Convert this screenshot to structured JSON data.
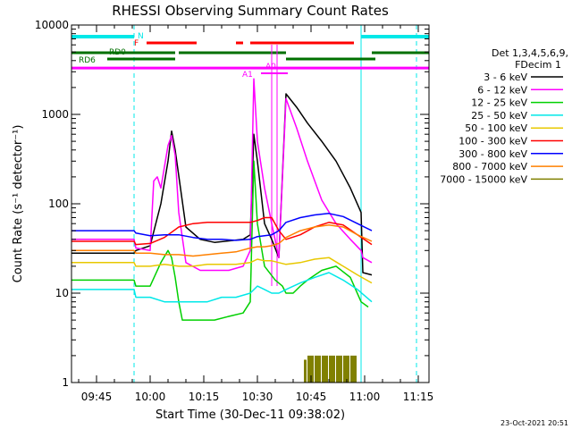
{
  "chart_data": {
    "type": "line",
    "title": "RHESSI Observing Summary Count Rates",
    "xlabel": "Start Time (30-Dec-11 09:38:02)",
    "ylabel": "Count Rate (s⁻¹ detector⁻¹)",
    "yscale": "log",
    "ylim": [
      1,
      10000
    ],
    "xlim_minutes_after_0938": [
      0,
      100
    ],
    "x_ticks": [
      {
        "label": "09:45",
        "t": 7
      },
      {
        "label": "10:00",
        "t": 22
      },
      {
        "label": "10:15",
        "t": 37
      },
      {
        "label": "10:30",
        "t": 52
      },
      {
        "label": "10:45",
        "t": 67
      },
      {
        "label": "11:00",
        "t": 82
      },
      {
        "label": "11:15",
        "t": 97
      }
    ],
    "y_ticks": [
      {
        "label": "1",
        "v": 1
      },
      {
        "label": "10",
        "v": 10
      },
      {
        "label": "100",
        "v": 100
      },
      {
        "label": "1000",
        "v": 1000
      },
      {
        "label": "10000",
        "v": 10000
      }
    ],
    "legend": {
      "placement": "right",
      "header": [
        "Det 1,3,4,5,6,9,",
        "FDecim 1"
      ],
      "entries": [
        {
          "label": "3 - 6 keV",
          "color": "#000000"
        },
        {
          "label": "6 - 12 keV",
          "color": "#ff00ff"
        },
        {
          "label": "12 - 25 keV",
          "color": "#00d000"
        },
        {
          "label": "25 - 50 keV",
          "color": "#00e8e8"
        },
        {
          "label": "50 - 100 keV",
          "color": "#e8c800"
        },
        {
          "label": "100 - 300 keV",
          "color": "#ff0000"
        },
        {
          "label": "300 - 800 keV",
          "color": "#0000ff"
        },
        {
          "label": "800 - 7000 keV",
          "color": "#ff8000"
        },
        {
          "label": "7000 - 15000 keV",
          "color": "#808000"
        }
      ]
    },
    "flags": {
      "N": {
        "label": "N",
        "color": "#00e8e8",
        "segments": [
          [
            0,
            17.5
          ],
          [
            81,
            100
          ]
        ]
      },
      "F": {
        "label": "F",
        "color": "#ff0000",
        "segments": [
          [
            21,
            35
          ],
          [
            46,
            48
          ],
          [
            50,
            79
          ]
        ]
      },
      "RD0": {
        "label": "RD0",
        "color": "#007000",
        "segments": [
          [
            0,
            29
          ],
          [
            30,
            60
          ],
          [
            84,
            100
          ]
        ]
      },
      "RD6": {
        "label": "RD6",
        "color": "#007000",
        "segments": [
          [
            10,
            29
          ],
          [
            60,
            85
          ]
        ]
      },
      "A1": {
        "label": "A1",
        "color": "#ff00ff"
      },
      "A0": {
        "label": "A0",
        "color": "#ff00ff"
      },
      "attenuator_line": {
        "color": "#ff00ff",
        "segments": [
          [
            0,
            100
          ]
        ],
        "level": 3300
      }
    },
    "eclipse_markers": [
      17.5,
      96.5
    ],
    "saa_markers": [
      81
    ],
    "series": [
      {
        "name": "3 - 6 keV",
        "color": "#000000",
        "x": [
          0,
          17.5,
          18,
          22,
          25,
          27,
          28,
          29,
          32,
          36,
          40,
          48,
          50,
          51,
          52,
          54,
          56,
          58,
          60,
          63,
          66,
          70,
          74,
          78,
          81,
          81.5,
          84
        ],
        "y": [
          28,
          28,
          30,
          34,
          100,
          300,
          650,
          400,
          55,
          40,
          37,
          40,
          45,
          600,
          300,
          60,
          40,
          25,
          1700,
          1200,
          800,
          500,
          300,
          150,
          80,
          17,
          16
        ]
      },
      {
        "name": "6 - 12 keV",
        "color": "#ff00ff",
        "x": [
          0,
          17.5,
          18,
          22,
          23,
          24,
          25,
          27,
          28,
          29,
          30,
          32,
          36,
          40,
          44,
          48,
          50,
          51,
          52,
          54,
          56,
          58,
          60,
          63,
          66,
          70,
          74,
          78,
          81,
          81.5,
          84
        ],
        "y": [
          40,
          40,
          32,
          30,
          180,
          200,
          150,
          450,
          580,
          350,
          80,
          22,
          18,
          18,
          18,
          20,
          30,
          2500,
          500,
          150,
          60,
          25,
          1500,
          700,
          300,
          110,
          60,
          40,
          30,
          25,
          22
        ]
      },
      {
        "name": "12 - 25 keV",
        "color": "#00d000",
        "x": [
          0,
          17.5,
          18,
          22,
          25,
          27,
          28,
          29,
          30,
          31,
          36,
          40,
          44,
          48,
          50,
          51,
          52,
          54,
          57,
          59,
          60,
          62,
          64,
          66,
          70,
          74,
          78,
          81,
          83
        ],
        "y": [
          14,
          14,
          12,
          12,
          22,
          30,
          25,
          15,
          8,
          5,
          5,
          5,
          5.5,
          6,
          8,
          300,
          60,
          20,
          14,
          12,
          10,
          10,
          12,
          14,
          18,
          20,
          15,
          8,
          7
        ]
      },
      {
        "name": "25 - 50 keV",
        "color": "#00e8e8",
        "x": [
          0,
          17.5,
          18,
          22,
          26,
          30,
          34,
          38,
          42,
          46,
          50,
          52,
          54,
          56,
          58,
          60,
          64,
          68,
          72,
          76,
          80,
          84
        ],
        "y": [
          11,
          11,
          9,
          9,
          8,
          8,
          8,
          8,
          9,
          9,
          10,
          12,
          11,
          10,
          10,
          11,
          13,
          15,
          17,
          14,
          11,
          8
        ]
      },
      {
        "name": "50 - 100 keV",
        "color": "#e8c800",
        "x": [
          0,
          17.5,
          18,
          22,
          26,
          30,
          34,
          38,
          42,
          46,
          50,
          52,
          54,
          56,
          58,
          60,
          64,
          68,
          72,
          76,
          80,
          84
        ],
        "y": [
          22,
          22,
          20,
          20,
          21,
          20,
          20,
          21,
          21,
          21,
          22,
          24,
          23,
          23,
          22,
          21,
          22,
          24,
          25,
          20,
          16,
          13
        ]
      },
      {
        "name": "100 - 300 keV",
        "color": "#ff0000",
        "x": [
          0,
          17.5,
          18,
          22,
          26,
          30,
          34,
          38,
          42,
          46,
          50,
          52,
          54,
          56,
          58,
          60,
          64,
          68,
          72,
          76,
          80,
          84
        ],
        "y": [
          38,
          38,
          35,
          36,
          42,
          55,
          60,
          62,
          62,
          62,
          62,
          65,
          70,
          70,
          50,
          40,
          45,
          55,
          62,
          58,
          45,
          35
        ]
      },
      {
        "name": "300 - 800 keV",
        "color": "#0000ff",
        "x": [
          0,
          17.5,
          18,
          22,
          26,
          30,
          34,
          38,
          42,
          46,
          50,
          52,
          54,
          56,
          58,
          60,
          64,
          68,
          72,
          76,
          80,
          84
        ],
        "y": [
          50,
          50,
          47,
          44,
          45,
          45,
          42,
          40,
          40,
          39,
          40,
          43,
          44,
          45,
          50,
          62,
          70,
          75,
          78,
          72,
          60,
          50
        ]
      },
      {
        "name": "800 - 7000 keV",
        "color": "#ff8000",
        "x": [
          0,
          17.5,
          18,
          22,
          26,
          30,
          34,
          38,
          42,
          46,
          50,
          52,
          54,
          56,
          58,
          60,
          64,
          68,
          72,
          76,
          80,
          84
        ],
        "y": [
          30,
          30,
          28,
          28,
          27,
          27,
          26,
          27,
          28,
          29,
          32,
          33,
          33,
          34,
          36,
          42,
          50,
          55,
          58,
          55,
          45,
          38
        ]
      },
      {
        "name": "7000 - 15000 keV",
        "color": "#808000",
        "x": [
          65,
          66,
          68,
          70,
          72,
          74,
          76,
          78,
          80
        ],
        "y": [
          1.8,
          2,
          2,
          2,
          2,
          2,
          2,
          2,
          1.5
        ]
      }
    ],
    "footer_timestamp": "23-Oct-2021 20:51"
  }
}
